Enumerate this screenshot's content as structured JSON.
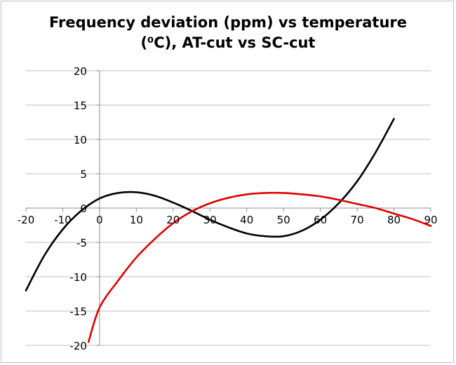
{
  "chart_data": {
    "type": "line",
    "title_line1": "Frequency deviation (ppm) vs temperature",
    "title_line2": "(⁰C), AT-cut vs SC-cut",
    "xlim": [
      -20,
      90
    ],
    "ylim": [
      -20,
      20
    ],
    "x_ticks": [
      -20,
      -10,
      0,
      10,
      20,
      30,
      40,
      50,
      60,
      70,
      80,
      90
    ],
    "y_ticks": [
      -20,
      -15,
      -10,
      -5,
      0,
      5,
      10,
      15,
      20
    ],
    "grid": "horizontal",
    "legend": "none",
    "series": [
      {
        "color": "#000000",
        "x": [
          -20,
          -15,
          -10,
          -5,
          0,
          5,
          10,
          15,
          20,
          25,
          30,
          35,
          40,
          45,
          50,
          55,
          60,
          65,
          70,
          75,
          80
        ],
        "y": [
          -12.0,
          -6.9,
          -3.1,
          -0.4,
          1.4,
          2.2,
          2.3,
          1.8,
          0.8,
          -0.4,
          -1.7,
          -2.8,
          -3.7,
          -4.1,
          -4.1,
          -3.3,
          -1.7,
          0.7,
          3.9,
          8.1,
          13.0
        ]
      },
      {
        "color": "#e00000",
        "x": [
          -3,
          0,
          5,
          10,
          15,
          20,
          25,
          30,
          35,
          40,
          45,
          50,
          55,
          60,
          65,
          70,
          75,
          80,
          85,
          90
        ],
        "y": [
          -19.5,
          -14.5,
          -10.6,
          -7.2,
          -4.5,
          -2.2,
          -0.5,
          0.7,
          1.5,
          2.0,
          2.2,
          2.2,
          2.0,
          1.7,
          1.2,
          0.6,
          0.0,
          -0.8,
          -1.6,
          -2.6
        ]
      }
    ]
  }
}
